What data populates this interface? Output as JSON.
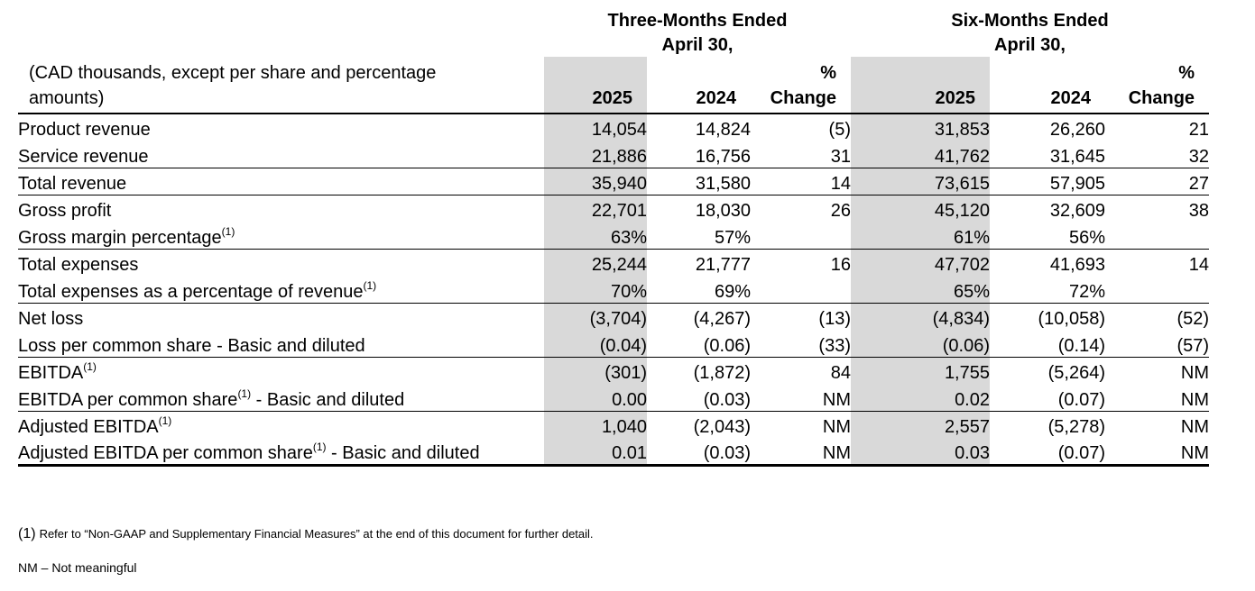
{
  "table": {
    "period_groups": [
      {
        "title": "Three-Months Ended",
        "subtitle": "April 30,"
      },
      {
        "title": "Six-Months Ended",
        "subtitle": "April 30,"
      }
    ],
    "units_note": {
      "line1": "(CAD thousands, except per share and percentage",
      "line2": "amounts)"
    },
    "column_headers": {
      "y2025": "2025",
      "y2024": "2024",
      "pct_line1": "%",
      "pct_line2": "Change"
    },
    "rows": [
      {
        "label": "Product revenue",
        "sup": "",
        "label_suffix": "",
        "rule": "none",
        "values": [
          "14,054",
          "14,824",
          "(5)",
          "31,853",
          "26,260",
          "21"
        ]
      },
      {
        "label": "Service revenue",
        "sup": "",
        "label_suffix": "",
        "rule": "thin",
        "values": [
          "21,886",
          "16,756",
          "31",
          "41,762",
          "31,645",
          "32"
        ]
      },
      {
        "label": "Total revenue",
        "sup": "",
        "label_suffix": "",
        "rule": "thin",
        "values": [
          "35,940",
          "31,580",
          "14",
          "73,615",
          "57,905",
          "27"
        ]
      },
      {
        "label": "Gross profit",
        "sup": "",
        "label_suffix": "",
        "rule": "none",
        "values": [
          "22,701",
          "18,030",
          "26",
          "45,120",
          "32,609",
          "38"
        ]
      },
      {
        "label": "Gross margin percentage",
        "sup": "(1)",
        "label_suffix": "",
        "rule": "thin",
        "values": [
          "63%",
          "57%",
          "",
          "61%",
          "56%",
          ""
        ]
      },
      {
        "label": "Total expenses",
        "sup": "",
        "label_suffix": "",
        "rule": "none",
        "values": [
          "25,244",
          "21,777",
          "16",
          "47,702",
          "41,693",
          "14"
        ]
      },
      {
        "label": "Total expenses as a percentage of revenue",
        "sup": "(1)",
        "label_suffix": "",
        "rule": "thin",
        "values": [
          "70%",
          "69%",
          "",
          "65%",
          "72%",
          ""
        ]
      },
      {
        "label": "Net loss",
        "sup": "",
        "label_suffix": "",
        "rule": "none",
        "values": [
          "(3,704)",
          "(4,267)",
          "(13)",
          "(4,834)",
          "(10,058)",
          "(52)"
        ]
      },
      {
        "label": "Loss per common share - Basic and diluted",
        "sup": "",
        "label_suffix": "",
        "rule": "thin",
        "values": [
          "(0.04)",
          "(0.06)",
          "(33)",
          "(0.06)",
          "(0.14)",
          "(57)"
        ]
      },
      {
        "label": "EBITDA",
        "sup": "(1)",
        "label_suffix": "",
        "rule": "none",
        "values": [
          "(301)",
          "(1,872)",
          "84",
          "1,755",
          "(5,264)",
          "NM"
        ]
      },
      {
        "label": "EBITDA per common share",
        "sup": "(1)",
        "label_suffix": " - Basic and diluted",
        "rule": "thin",
        "values": [
          "0.00",
          "(0.03)",
          "NM",
          "0.02",
          "(0.07)",
          "NM"
        ]
      },
      {
        "label": "Adjusted EBITDA",
        "sup": "(1)",
        "label_suffix": "",
        "rule": "none",
        "values": [
          "1,040",
          "(2,043)",
          "NM",
          "2,557",
          "(5,278)",
          "NM"
        ]
      },
      {
        "label": "Adjusted EBITDA per common share",
        "sup": "(1)",
        "label_suffix": " - Basic and diluted",
        "rule": "thick",
        "values": [
          "0.01",
          "(0.03)",
          "NM",
          "0.03",
          "(0.07)",
          "NM"
        ]
      }
    ]
  },
  "footnotes": {
    "ref_marker": "(1)",
    "ref_text": "Refer to “Non-GAAP and Supplementary Financial Measures” at the end of this document for further detail.",
    "nm_note": "NM – Not meaningful"
  },
  "colors": {
    "shade": "#d9d9d9",
    "text": "#000000",
    "background": "#ffffff"
  }
}
